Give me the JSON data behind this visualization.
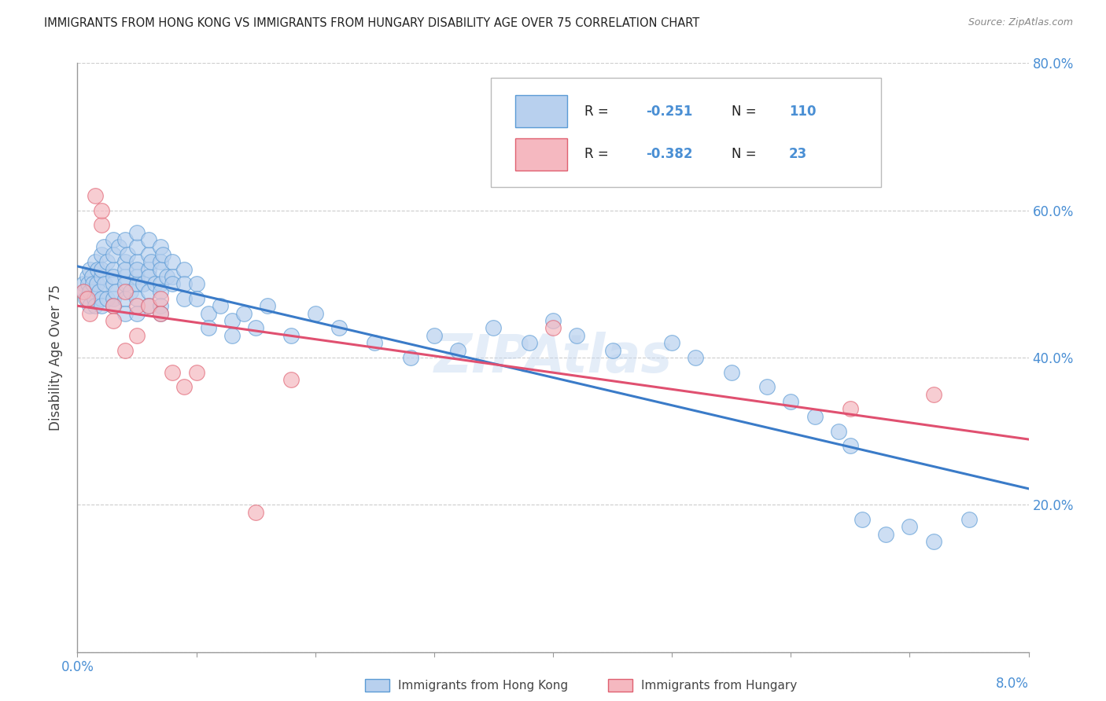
{
  "title": "IMMIGRANTS FROM HONG KONG VS IMMIGRANTS FROM HUNGARY DISABILITY AGE OVER 75 CORRELATION CHART",
  "source": "Source: ZipAtlas.com",
  "ylabel": "Disability Age Over 75",
  "legend_hk_r": "-0.251",
  "legend_hk_n": "110",
  "legend_hu_r": "-0.382",
  "legend_hu_n": "23",
  "legend_label_hk": "Immigrants from Hong Kong",
  "legend_label_hu": "Immigrants from Hungary",
  "color_hk_fill": "#b8d0ee",
  "color_hk_edge": "#5b9bd5",
  "color_hu_fill": "#f5b8c0",
  "color_hu_edge": "#e06070",
  "color_hk_line": "#3a7bc8",
  "color_hu_line": "#e05070",
  "color_text": "#444444",
  "color_blue": "#4a8fd4",
  "color_axis": "#999999",
  "color_grid": "#cccccc",
  "watermark": "ZIPAtlas",
  "xmin": 0.0,
  "xmax": 0.08,
  "ymin": 0.0,
  "ymax": 0.8,
  "background": "#ffffff",
  "hk_x": [
    0.0005,
    0.0006,
    0.0007,
    0.0008,
    0.0009,
    0.001,
    0.001,
    0.001,
    0.0012,
    0.0013,
    0.0014,
    0.0015,
    0.0015,
    0.0016,
    0.0017,
    0.0018,
    0.002,
    0.002,
    0.002,
    0.002,
    0.002,
    0.0022,
    0.0023,
    0.0025,
    0.0025,
    0.003,
    0.003,
    0.003,
    0.003,
    0.003,
    0.003,
    0.003,
    0.0032,
    0.0035,
    0.004,
    0.004,
    0.004,
    0.004,
    0.004,
    0.004,
    0.004,
    0.0042,
    0.0045,
    0.005,
    0.005,
    0.005,
    0.005,
    0.005,
    0.005,
    0.005,
    0.005,
    0.0055,
    0.006,
    0.006,
    0.006,
    0.006,
    0.006,
    0.006,
    0.0062,
    0.0065,
    0.007,
    0.007,
    0.007,
    0.007,
    0.007,
    0.007,
    0.007,
    0.0072,
    0.0075,
    0.008,
    0.008,
    0.008,
    0.009,
    0.009,
    0.009,
    0.01,
    0.01,
    0.011,
    0.011,
    0.012,
    0.013,
    0.013,
    0.014,
    0.015,
    0.016,
    0.018,
    0.02,
    0.022,
    0.025,
    0.028,
    0.03,
    0.032,
    0.035,
    0.038,
    0.04,
    0.042,
    0.045,
    0.05,
    0.052,
    0.055,
    0.058,
    0.06,
    0.062,
    0.064,
    0.065,
    0.066,
    0.068,
    0.07,
    0.072,
    0.075
  ],
  "hk_y": [
    0.5,
    0.49,
    0.48,
    0.51,
    0.5,
    0.52,
    0.49,
    0.47,
    0.51,
    0.5,
    0.48,
    0.53,
    0.47,
    0.5,
    0.52,
    0.49,
    0.54,
    0.51,
    0.48,
    0.52,
    0.47,
    0.55,
    0.5,
    0.53,
    0.48,
    0.56,
    0.52,
    0.5,
    0.48,
    0.47,
    0.54,
    0.51,
    0.49,
    0.55,
    0.53,
    0.51,
    0.5,
    0.48,
    0.46,
    0.56,
    0.52,
    0.54,
    0.49,
    0.53,
    0.51,
    0.5,
    0.48,
    0.46,
    0.55,
    0.52,
    0.57,
    0.5,
    0.54,
    0.52,
    0.51,
    0.49,
    0.47,
    0.56,
    0.53,
    0.5,
    0.55,
    0.53,
    0.52,
    0.5,
    0.49,
    0.47,
    0.46,
    0.54,
    0.51,
    0.53,
    0.51,
    0.5,
    0.52,
    0.5,
    0.48,
    0.5,
    0.48,
    0.46,
    0.44,
    0.47,
    0.45,
    0.43,
    0.46,
    0.44,
    0.47,
    0.43,
    0.46,
    0.44,
    0.42,
    0.4,
    0.43,
    0.41,
    0.44,
    0.42,
    0.45,
    0.43,
    0.41,
    0.42,
    0.4,
    0.38,
    0.36,
    0.34,
    0.32,
    0.3,
    0.28,
    0.18,
    0.16,
    0.17,
    0.15,
    0.18
  ],
  "hu_x": [
    0.0005,
    0.0008,
    0.001,
    0.0015,
    0.002,
    0.002,
    0.003,
    0.003,
    0.004,
    0.004,
    0.005,
    0.005,
    0.006,
    0.007,
    0.007,
    0.008,
    0.009,
    0.01,
    0.015,
    0.018,
    0.04,
    0.065,
    0.072
  ],
  "hu_y": [
    0.49,
    0.48,
    0.46,
    0.62,
    0.58,
    0.6,
    0.47,
    0.45,
    0.49,
    0.41,
    0.47,
    0.43,
    0.47,
    0.48,
    0.46,
    0.38,
    0.36,
    0.38,
    0.19,
    0.37,
    0.44,
    0.33,
    0.35
  ]
}
